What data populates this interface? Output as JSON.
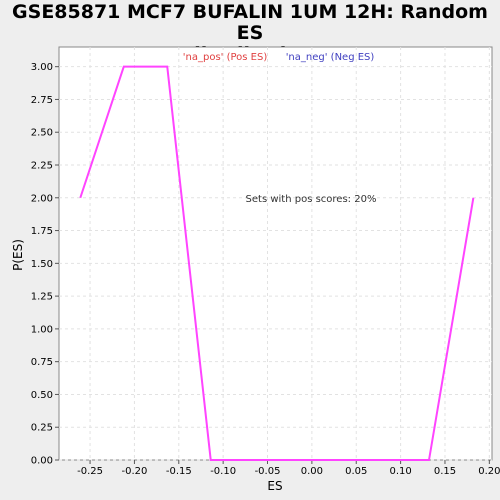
{
  "chart_data": {
    "type": "line",
    "title_line1": "GSE85871 MCF7 BUFALIN 1UM 12H: Random ES",
    "title_line2": "distribution",
    "xlabel": "ES",
    "ylabel": "P(ES)",
    "xlim": [
      -0.285,
      0.203
    ],
    "ylim": [
      0,
      3.15
    ],
    "x_ticks": [
      -0.25,
      -0.2,
      -0.15,
      -0.1,
      -0.05,
      0.0,
      0.05,
      0.1,
      0.15,
      0.2
    ],
    "x_tick_labels": [
      "-0.25",
      "-0.20",
      "-0.15",
      "-0.10",
      "-0.05",
      "0.00",
      "0.05",
      "0.10",
      "0.15",
      "0.20"
    ],
    "y_ticks": [
      0,
      0.25,
      0.5,
      0.75,
      1.0,
      1.25,
      1.5,
      1.75,
      2.0,
      2.25,
      2.5,
      2.75,
      3.0
    ],
    "y_tick_labels": [
      "0.00",
      "0.25",
      "0.50",
      "0.75",
      "1.00",
      "1.25",
      "1.50",
      "1.75",
      "2.00",
      "2.25",
      "2.50",
      "2.75",
      "3.00"
    ],
    "legend": [
      {
        "label": "'na_pos' (Pos ES)",
        "color": "#e04040"
      },
      {
        "label": "'na_neg' (Neg ES)",
        "color": "#4040c0"
      }
    ],
    "annotation": "Sets with pos scores: 20%",
    "grid": true,
    "series": [
      {
        "color": "#ff44ff",
        "x": [
          -0.261,
          -0.212,
          -0.163,
          -0.114,
          0.132,
          0.182
        ],
        "y": [
          2.0,
          3.0,
          3.0,
          0.0,
          0.0,
          2.0
        ]
      }
    ]
  }
}
